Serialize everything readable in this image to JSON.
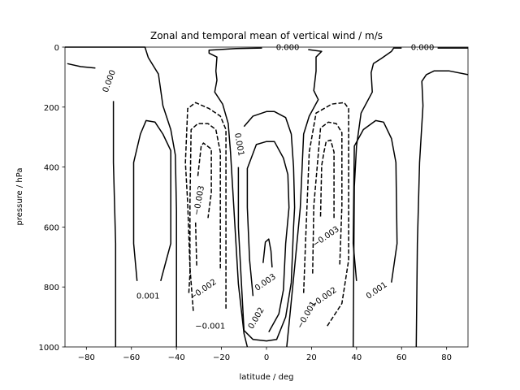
{
  "chart_data": {
    "type": "contour",
    "title": "Zonal and temporal mean of vertical wind / m/s",
    "xlabel": "latitude / deg",
    "ylabel": "pressure / hPa",
    "xlim": [
      -89.5,
      89.5
    ],
    "ylim": [
      1000,
      0
    ],
    "y_inverted": true,
    "grid": false,
    "line_color": "#000000",
    "negative_linestyle": "dashed",
    "x_ticks": [
      "−80",
      "−60",
      "−40",
      "−20",
      "0",
      "20",
      "40",
      "60",
      "80"
    ],
    "x_tick_values": [
      -80,
      -60,
      -40,
      -20,
      0,
      20,
      40,
      60,
      80
    ],
    "y_ticks": [
      "0",
      "200",
      "400",
      "600",
      "800",
      "1000"
    ],
    "y_tick_values": [
      0,
      200,
      400,
      600,
      800,
      1000
    ],
    "contours": [
      {
        "level": 0.0,
        "points": [
          [
            -89.5,
            0
          ],
          [
            -54,
            0
          ],
          [
            -52.5,
            35
          ],
          [
            -48,
            90
          ],
          [
            -46,
            195
          ],
          [
            -42.5,
            275
          ],
          [
            -40.5,
            360
          ],
          [
            -40,
            545
          ],
          [
            -40,
            1000
          ]
        ]
      },
      {
        "level": 0.0,
        "points": [
          [
            -88.5,
            55
          ],
          [
            -82.5,
            65
          ],
          [
            -76,
            70
          ]
        ]
      },
      {
        "level": 0.0,
        "points": [
          [
            -68,
            180
          ],
          [
            -68,
            385
          ],
          [
            -67,
            655
          ],
          [
            -67,
            1000
          ]
        ]
      },
      {
        "level": 0.0,
        "points": [
          [
            -2,
            3
          ],
          [
            -13.5,
            5
          ],
          [
            -25.5,
            10
          ],
          [
            -25.5,
            20
          ],
          [
            -22,
            33
          ],
          [
            -22.5,
            80
          ],
          [
            -22,
            110
          ],
          [
            -23,
            150
          ],
          [
            -19.5,
            190
          ],
          [
            -17,
            255
          ],
          [
            -16,
            350
          ],
          [
            -14.5,
            535
          ],
          [
            -12.5,
            790
          ],
          [
            -10,
            955
          ],
          [
            -8.5,
            1000
          ]
        ]
      },
      {
        "level": 0.0,
        "points": [
          [
            18.5,
            8
          ],
          [
            24.5,
            14
          ],
          [
            22,
            33
          ],
          [
            22,
            80
          ],
          [
            21,
            145
          ],
          [
            23,
            175
          ],
          [
            19,
            230
          ],
          [
            16.5,
            290
          ],
          [
            15,
            535
          ],
          [
            12.5,
            735
          ],
          [
            10,
            925
          ],
          [
            9,
            1000
          ]
        ]
      },
      {
        "level": 0.0,
        "points": [
          [
            60,
            3
          ],
          [
            56.5,
            3
          ],
          [
            55.5,
            14
          ],
          [
            51,
            38
          ],
          [
            47.5,
            55
          ],
          [
            46.5,
            85
          ],
          [
            47,
            150
          ],
          [
            42,
            220
          ],
          [
            40,
            330
          ],
          [
            39,
            465
          ],
          [
            38.5,
            1000
          ]
        ]
      },
      {
        "level": 0.0,
        "points": [
          [
            76,
            3
          ],
          [
            89.5,
            3
          ]
        ]
      },
      {
        "level": 0.0,
        "points": [
          [
            89.5,
            92
          ],
          [
            81,
            79
          ],
          [
            74.5,
            79
          ],
          [
            71,
            92
          ],
          [
            69,
            114
          ],
          [
            69.5,
            195
          ],
          [
            68,
            385
          ],
          [
            67,
            655
          ],
          [
            66.5,
            1000
          ]
        ]
      },
      {
        "level": 0.001,
        "points": [
          [
            -47,
            780
          ],
          [
            -44.5,
            710
          ],
          [
            -42.5,
            655
          ],
          [
            -42.5,
            345
          ],
          [
            -46,
            290
          ],
          [
            -49.5,
            250
          ],
          [
            -53.5,
            245
          ],
          [
            -56,
            290
          ],
          [
            -59,
            385
          ],
          [
            -59,
            655
          ],
          [
            -57.5,
            780
          ]
        ]
      },
      {
        "level": 0.001,
        "points": [
          [
            40,
            780
          ],
          [
            38.5,
            655
          ],
          [
            39,
            330
          ],
          [
            43,
            275
          ],
          [
            48.5,
            245
          ],
          [
            52,
            250
          ],
          [
            55.5,
            305
          ],
          [
            57.5,
            385
          ],
          [
            58,
            655
          ],
          [
            55.5,
            785
          ]
        ]
      },
      {
        "level": 0.001,
        "points": [
          [
            -12.5,
            400
          ],
          [
            -12.5,
            535
          ],
          [
            -12.5,
            600
          ],
          [
            -10,
            945
          ],
          [
            -6,
            975
          ],
          [
            0,
            980
          ],
          [
            4.5,
            975
          ],
          [
            8.5,
            900
          ],
          [
            11,
            785
          ],
          [
            12,
            600
          ],
          [
            12.5,
            535
          ],
          [
            12,
            400
          ],
          [
            11,
            290
          ],
          [
            8.5,
            235
          ],
          [
            3.5,
            215
          ],
          [
            0,
            215
          ],
          [
            -6,
            230
          ],
          [
            -10,
            265
          ]
        ]
      },
      {
        "level": 0.002,
        "points": [
          [
            -6,
            830
          ],
          [
            -7.5,
            710
          ],
          [
            -8.5,
            535
          ],
          [
            -8.5,
            405
          ],
          [
            -4.5,
            325
          ],
          [
            0,
            315
          ],
          [
            3.5,
            315
          ],
          [
            7.5,
            370
          ],
          [
            9.5,
            425
          ],
          [
            10,
            535
          ],
          [
            8.5,
            655
          ],
          [
            7.5,
            810
          ],
          [
            5.5,
            890
          ],
          [
            1,
            950
          ]
        ]
      },
      {
        "level": 0.003,
        "points": [
          [
            -1.5,
            720
          ],
          [
            -0.5,
            650
          ],
          [
            1,
            640
          ],
          [
            2,
            680
          ],
          [
            2.5,
            735
          ]
        ]
      },
      {
        "level": -0.001,
        "points": [
          [
            -32.5,
            880
          ],
          [
            -34,
            735
          ],
          [
            -35,
            520
          ],
          [
            -36,
            385
          ],
          [
            -35,
            205
          ],
          [
            -31.5,
            185
          ],
          [
            -25.5,
            205
          ],
          [
            -20.5,
            230
          ],
          [
            -18,
            275
          ],
          [
            -18,
            440
          ],
          [
            -18,
            655
          ],
          [
            -18,
            875
          ]
        ]
      },
      {
        "level": -0.002,
        "points": [
          [
            -34.5,
            820
          ],
          [
            -34,
            755
          ],
          [
            -34,
            520
          ],
          [
            -33.5,
            275
          ],
          [
            -30.5,
            255
          ],
          [
            -26,
            255
          ],
          [
            -22.5,
            275
          ],
          [
            -20.5,
            350
          ],
          [
            -20.5,
            745
          ]
        ]
      },
      {
        "level": -0.003,
        "points": [
          [
            -30.5,
            430
          ],
          [
            -29,
            330
          ],
          [
            -28,
            320
          ],
          [
            -24.5,
            340
          ],
          [
            -24.5,
            485
          ],
          [
            -26,
            570
          ]
        ]
      },
      {
        "level": -0.003,
        "points": [
          [
            -31.5,
            585
          ],
          [
            -31,
            730
          ]
        ]
      },
      {
        "level": -0.001,
        "points": [
          [
            16.5,
            820
          ],
          [
            17.5,
            620
          ],
          [
            19,
            350
          ],
          [
            22,
            220
          ],
          [
            29,
            190
          ],
          [
            34.5,
            185
          ],
          [
            36.5,
            205
          ],
          [
            36.5,
            440
          ],
          [
            36.5,
            710
          ],
          [
            33.5,
            855
          ],
          [
            27,
            930
          ]
        ]
      },
      {
        "level": -0.002,
        "points": [
          [
            20.5,
            755
          ],
          [
            21,
            530
          ],
          [
            24,
            270
          ],
          [
            27.5,
            250
          ],
          [
            31,
            255
          ],
          [
            33.5,
            285
          ],
          [
            33.5,
            530
          ],
          [
            32.5,
            730
          ]
        ]
      },
      {
        "level": -0.003,
        "points": [
          [
            24,
            565
          ],
          [
            24.5,
            395
          ],
          [
            25.5,
            350
          ],
          [
            26.5,
            315
          ],
          [
            28.5,
            310
          ],
          [
            30,
            350
          ],
          [
            30,
            575
          ]
        ]
      }
    ],
    "contour_labels": [
      {
        "text": "0.000",
        "lat": -69.7,
        "p": 114
      },
      {
        "text": "0.000",
        "lat": 9.4,
        "p": 3
      },
      {
        "text": "0.000",
        "lat": 69.3,
        "p": 3
      },
      {
        "text": "0.001",
        "lat": -12.3,
        "p": 325
      },
      {
        "text": "−0.003",
        "lat": -29.8,
        "p": 512
      },
      {
        "text": "−0.003",
        "lat": 26.5,
        "p": 634
      },
      {
        "text": "−0.002",
        "lat": -28,
        "p": 810
      },
      {
        "text": "−0.002",
        "lat": 25.4,
        "p": 837
      },
      {
        "text": "0.003",
        "lat": -0.4,
        "p": 786
      },
      {
        "text": "0.002",
        "lat": -4.4,
        "p": 905
      },
      {
        "text": "−0.001",
        "lat": -25,
        "p": 932
      },
      {
        "text": "−0.001",
        "lat": 18,
        "p": 894
      },
      {
        "text": "0.001",
        "lat": -52.6,
        "p": 832
      },
      {
        "text": "0.001",
        "lat": 49,
        "p": 813
      }
    ]
  }
}
